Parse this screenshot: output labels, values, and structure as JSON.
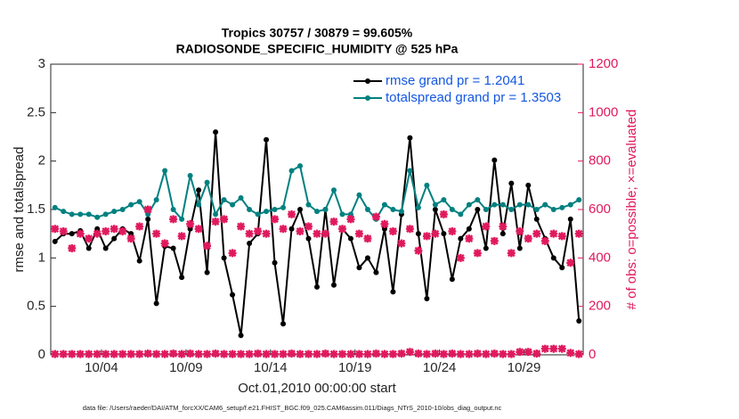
{
  "chart_data": {
    "type": "line",
    "title": "Tropics 30757 / 30879 = 99.605%",
    "subtitle": "RADIOSONDE_SPECIFIC_HUMIDITY @ 525 hPa",
    "xlabel": "Oct.01,2010 00:00:00 start",
    "ylabel": "rmse and totalspread",
    "y2label": "# of obs: o=possible; ×=evaluated",
    "footnote": "data file: /Users/raeder/DAI/ATM_forcXX/CAM6_setup/f.e21.FHIST_BGC.f09_025.CAM6assim.011/Diags_NTrS_2010-10/obs_diag_output.nc",
    "x": [
      1.25,
      1.75,
      2.25,
      2.75,
      3.25,
      3.75,
      4.25,
      4.75,
      5.25,
      5.75,
      6.25,
      6.75,
      7.25,
      7.75,
      8.25,
      8.75,
      9.25,
      9.75,
      10.25,
      10.75,
      11.25,
      11.75,
      12.25,
      12.75,
      13.25,
      13.75,
      14.25,
      14.75,
      15.25,
      15.75,
      16.25,
      16.75,
      17.25,
      17.75,
      18.25,
      18.75,
      19.25,
      19.75,
      20.25,
      20.75,
      21.25,
      21.75,
      22.25,
      22.75,
      23.25,
      23.75,
      24.25,
      24.75,
      25.25,
      25.75,
      26.25,
      26.75,
      27.25,
      27.75,
      28.25,
      28.75,
      29.25,
      29.75,
      30.25,
      30.75,
      31.25,
      31.75,
      32.25
    ],
    "xlim": [
      1,
      32.5
    ],
    "xticks": [
      {
        "value": 4,
        "label": "10/04"
      },
      {
        "value": 9,
        "label": "10/09"
      },
      {
        "value": 14,
        "label": "10/14"
      },
      {
        "value": 19,
        "label": "10/19"
      },
      {
        "value": 24,
        "label": "10/24"
      },
      {
        "value": 29,
        "label": "10/29"
      }
    ],
    "ylim": [
      0,
      3
    ],
    "yticks": [
      0,
      0.5,
      1,
      1.5,
      2,
      2.5,
      3
    ],
    "y2lim": [
      0,
      1200
    ],
    "y2ticks": [
      0,
      200,
      400,
      600,
      800,
      1000,
      1200
    ],
    "legend": "upper right",
    "series": [
      {
        "name": "rmse grand pr = 1.2041",
        "color": "#000000",
        "values": [
          1.17,
          1.25,
          1.25,
          1.28,
          1.1,
          1.3,
          1.1,
          1.2,
          1.3,
          1.25,
          0.97,
          1.4,
          0.53,
          1.12,
          1.1,
          0.8,
          1.3,
          1.7,
          0.85,
          2.3,
          1.0,
          0.62,
          0.2,
          1.15,
          1.25,
          2.22,
          0.95,
          0.32,
          1.3,
          1.5,
          1.2,
          0.7,
          1.5,
          0.72,
          1.3,
          1.2,
          0.9,
          1.0,
          0.85,
          1.3,
          0.65,
          1.45,
          2.24,
          1.25,
          0.58,
          1.5,
          1.25,
          0.78,
          1.2,
          1.3,
          1.5,
          1.1,
          2.01,
          1.25,
          1.77,
          1.1,
          1.75,
          1.4,
          1.2,
          1.0,
          0.9,
          1.4,
          0.35
        ]
      },
      {
        "name": "totalspread grand pr = 1.3503",
        "color": "#008080",
        "values": [
          1.52,
          1.48,
          1.45,
          1.45,
          1.45,
          1.42,
          1.45,
          1.48,
          1.5,
          1.55,
          1.58,
          1.45,
          1.6,
          1.9,
          1.5,
          1.4,
          1.85,
          1.55,
          1.78,
          1.45,
          1.6,
          1.55,
          1.62,
          1.5,
          1.45,
          1.48,
          1.5,
          1.52,
          1.9,
          1.95,
          1.55,
          1.48,
          1.5,
          1.7,
          1.45,
          1.45,
          1.65,
          1.5,
          1.4,
          1.55,
          1.5,
          1.48,
          1.9,
          1.52,
          1.75,
          1.55,
          1.6,
          1.5,
          1.45,
          1.55,
          1.6,
          1.5,
          1.55,
          1.55,
          1.5,
          1.55,
          1.55,
          1.5,
          1.55,
          1.5,
          1.52,
          1.55,
          1.6
        ]
      },
      {
        "color": "#e0195e",
        "axis": "y2",
        "values": [
          520,
          510,
          440,
          500,
          480,
          500,
          510,
          520,
          510,
          480,
          530,
          600,
          500,
          460,
          560,
          490,
          540,
          520,
          450,
          550,
          560,
          420,
          530,
          500,
          510,
          500,
          560,
          520,
          580,
          510,
          530,
          500,
          500,
          550,
          520,
          560,
          500,
          480,
          570,
          540,
          510,
          460,
          520,
          430,
          490,
          500,
          580,
          510,
          400,
          480,
          420,
          530,
          470,
          530,
          420,
          510,
          480,
          500,
          470,
          500,
          490,
          380,
          500
        ]
      },
      {
        "color": "#e0195e",
        "axis": "y2",
        "values": [
          3,
          3,
          3,
          3,
          3,
          3,
          3,
          3,
          3,
          3,
          3,
          5,
          3,
          3,
          5,
          3,
          5,
          3,
          3,
          5,
          3,
          3,
          3,
          3,
          5,
          3,
          3,
          3,
          5,
          3,
          3,
          3,
          5,
          3,
          3,
          3,
          3,
          3,
          5,
          3,
          3,
          5,
          12,
          5,
          3,
          5,
          3,
          5,
          3,
          3,
          5,
          3,
          5,
          3,
          3,
          12,
          12,
          5,
          25,
          25,
          25,
          8,
          3
        ]
      }
    ]
  }
}
